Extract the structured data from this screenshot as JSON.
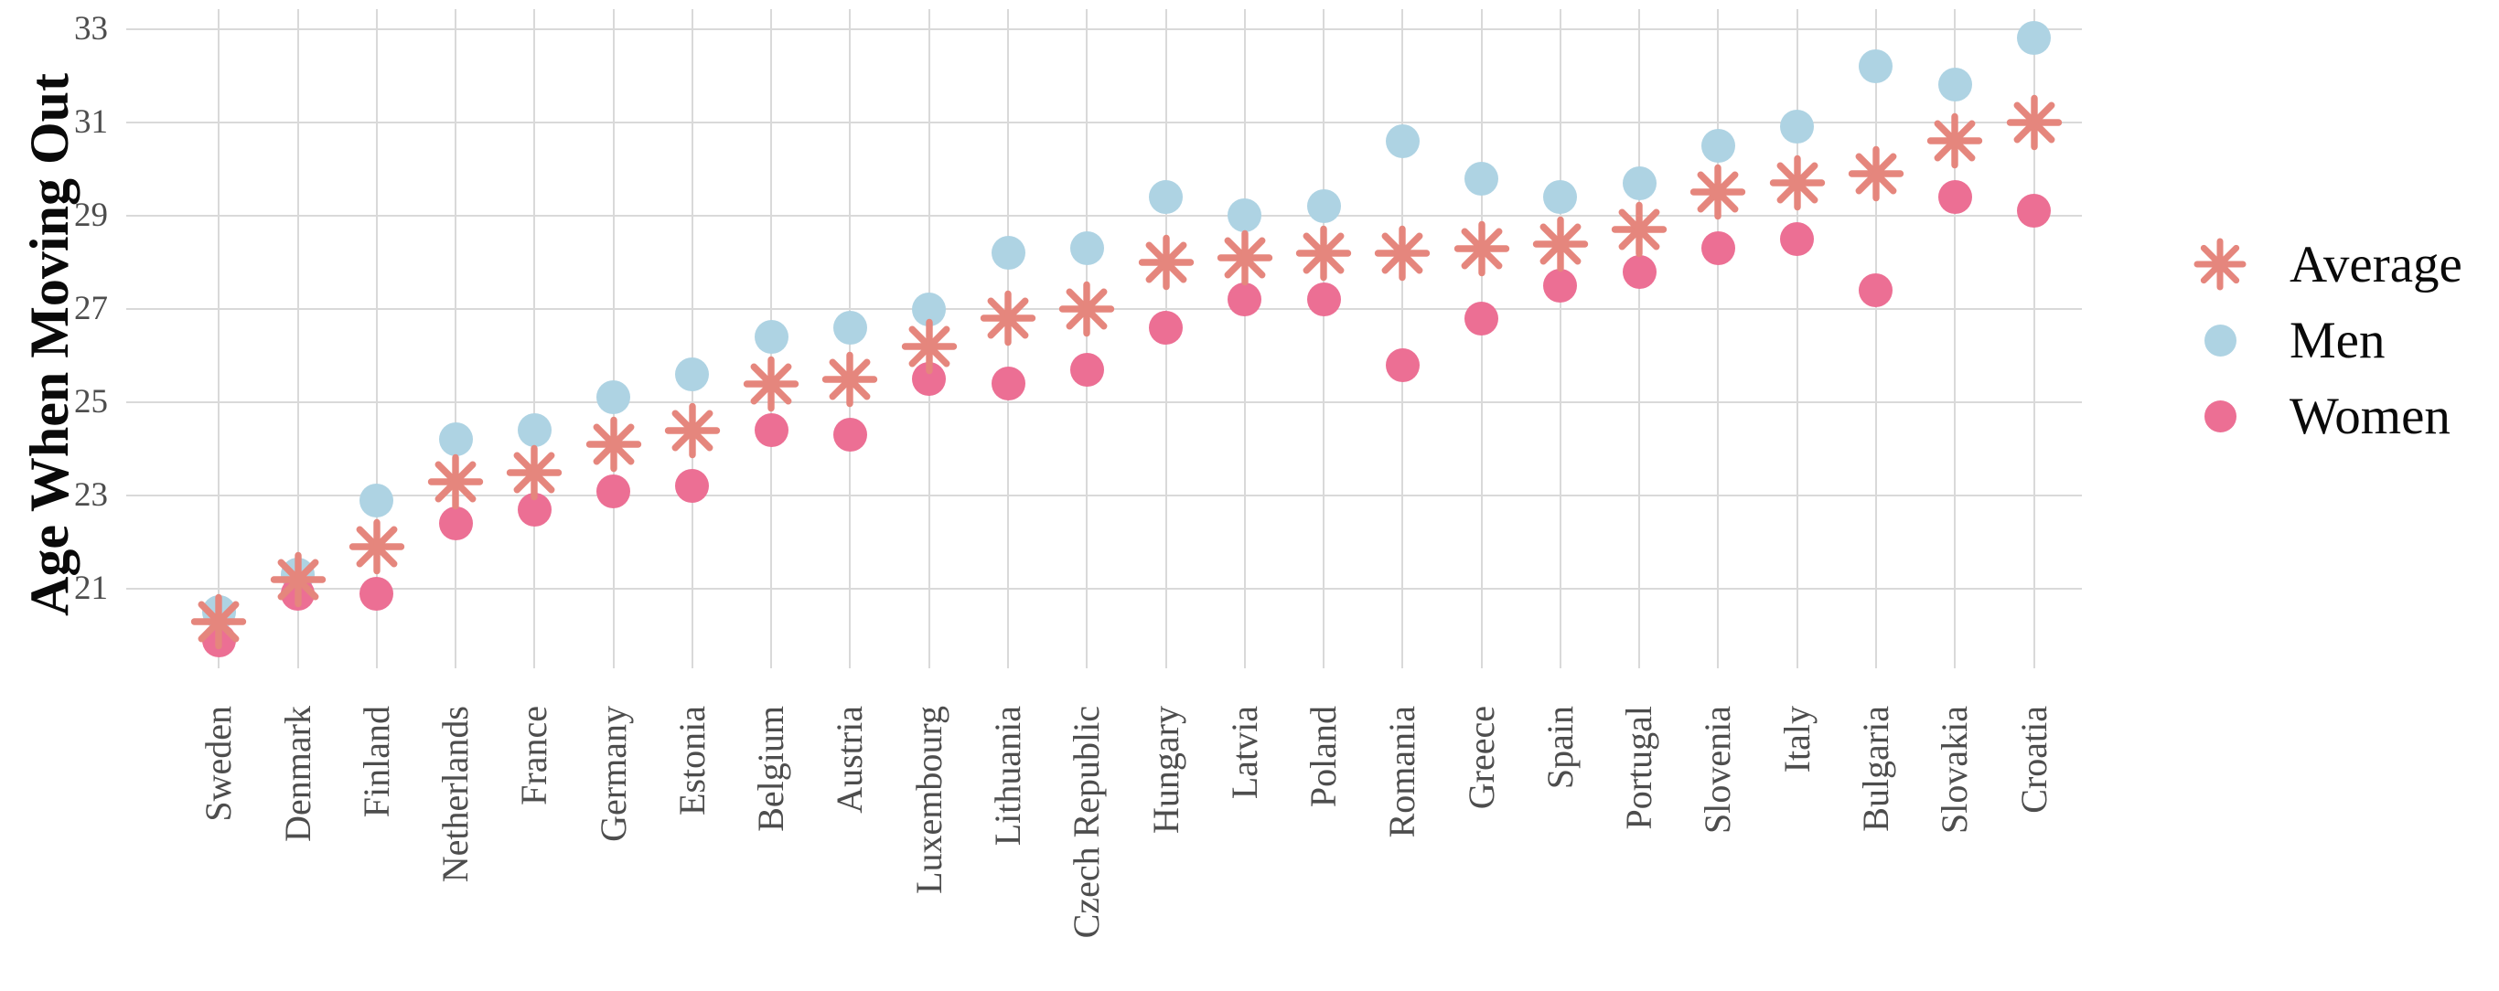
{
  "chart_data": {
    "type": "scatter",
    "title": "",
    "xlabel": "",
    "ylabel": "Age When Moving Out",
    "y_ticks": [
      21,
      23,
      25,
      27,
      29,
      31,
      33
    ],
    "ylim": [
      19.3,
      33.4
    ],
    "grid": true,
    "legend_position": "right",
    "categories": [
      "Sweden",
      "Denmark",
      "Finland",
      "Netherlands",
      "France",
      "Germany",
      "Estonia",
      "Belgium",
      "Austria",
      "Luxembourg",
      "Lithuania",
      "Czech Republic",
      "Hungary",
      "Latvia",
      "Poland",
      "Romania",
      "Greece",
      "Spain",
      "Portugal",
      "Slovenia",
      "Italy",
      "Bulgaria",
      "Slovakia",
      "Croatia"
    ],
    "series": [
      {
        "name": "Average",
        "marker": "asterisk",
        "color": "#e5867d",
        "values": [
          20.3,
          21.2,
          21.9,
          23.3,
          23.5,
          24.1,
          24.4,
          25.4,
          25.5,
          26.2,
          26.8,
          27.0,
          28.0,
          28.1,
          28.2,
          28.2,
          28.3,
          28.4,
          28.7,
          29.5,
          29.7,
          29.9,
          30.6,
          31.0
        ]
      },
      {
        "name": "Men",
        "marker": "circle",
        "color": "#aed3e3",
        "values": [
          20.5,
          21.3,
          22.9,
          24.2,
          24.4,
          25.1,
          25.6,
          26.4,
          26.6,
          27.0,
          28.2,
          28.3,
          29.4,
          29.0,
          29.2,
          30.6,
          29.8,
          29.4,
          29.7,
          30.5,
          30.9,
          32.2,
          31.8,
          32.8
        ]
      },
      {
        "name": "Women",
        "marker": "circle",
        "color": "#ec6f94",
        "values": [
          19.9,
          20.9,
          20.9,
          22.4,
          22.7,
          23.1,
          23.2,
          24.4,
          24.3,
          25.5,
          25.4,
          25.7,
          26.6,
          27.2,
          27.2,
          25.8,
          26.8,
          27.5,
          27.8,
          28.3,
          28.5,
          27.4,
          29.4,
          29.1
        ]
      }
    ]
  },
  "styles": {
    "grid_color": "#d9d9d9",
    "tick_label_color": "#4d4d4d",
    "category_label_color": "#4d4d4d",
    "text_color": "#0a0a0a",
    "background": "#ffffff"
  }
}
